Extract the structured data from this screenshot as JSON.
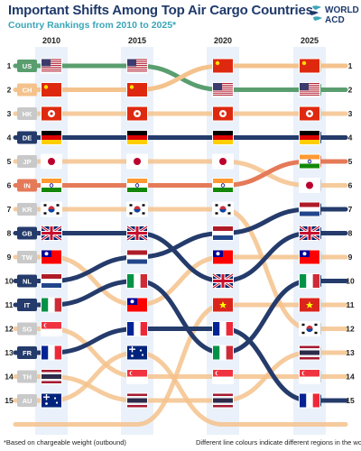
{
  "header": {
    "title": "Important Shifts Among Top Air Cargo Countries",
    "subtitle": "Country Rankings from 2010 to 2025*"
  },
  "logo": {
    "line1": "WORLD",
    "line2": "ACD"
  },
  "footer": {
    "footnote": "*Based on chargeable weight (outbound)",
    "note": "Different line colours indicate different regions in the world"
  },
  "colors": {
    "americas": "#5a9e6f",
    "asia": "#f4c28c",
    "europe": "#243b6b",
    "india": "#e57a58",
    "column_band": "#eaf1fa",
    "gray_badge": "#c9c9c9"
  },
  "chart_data": {
    "type": "bump",
    "years": [
      "2010",
      "2015",
      "2020",
      "2025"
    ],
    "ranks": [
      1,
      2,
      3,
      4,
      5,
      6,
      7,
      8,
      9,
      10,
      11,
      12,
      13,
      14,
      15
    ],
    "left_codes": [
      "US",
      "CH",
      "HK",
      "DE",
      "JP",
      "IN",
      "KR",
      "GB",
      "TW",
      "NL",
      "IT",
      "SG",
      "FR",
      "TH",
      "AU"
    ],
    "right_codes": [
      "CH",
      "US",
      "HK",
      "DE",
      "IN",
      "JP",
      "NL",
      "GB",
      "TW",
      "IT",
      "VN",
      "KR",
      "TH",
      "SG",
      "FR"
    ],
    "series": [
      {
        "code": "US",
        "flag": "us",
        "color": "americas",
        "highlight": true,
        "ranks": [
          1,
          1,
          2,
          2
        ]
      },
      {
        "code": "CH",
        "flag": "cn",
        "color": "asia",
        "highlight": true,
        "ranks": [
          2,
          2,
          1,
          1
        ]
      },
      {
        "code": "HK",
        "flag": "hk",
        "color": "asia",
        "highlight": false,
        "ranks": [
          3,
          3,
          3,
          3
        ]
      },
      {
        "code": "DE",
        "flag": "de",
        "color": "europe",
        "highlight": true,
        "ranks": [
          4,
          4,
          4,
          4
        ]
      },
      {
        "code": "JP",
        "flag": "jp",
        "color": "asia",
        "highlight": false,
        "ranks": [
          5,
          5,
          5,
          6
        ]
      },
      {
        "code": "IN",
        "flag": "in",
        "color": "india",
        "highlight": true,
        "ranks": [
          6,
          6,
          6,
          5
        ]
      },
      {
        "code": "KR",
        "flag": "kr",
        "color": "asia",
        "highlight": false,
        "ranks": [
          7,
          7,
          7,
          12
        ]
      },
      {
        "code": "GB",
        "flag": "gb",
        "color": "europe",
        "highlight": true,
        "ranks": [
          8,
          8,
          10,
          8
        ]
      },
      {
        "code": "TW",
        "flag": "tw",
        "color": "asia",
        "highlight": false,
        "ranks": [
          9,
          11,
          9,
          9
        ]
      },
      {
        "code": "NL",
        "flag": "nl",
        "color": "europe",
        "highlight": true,
        "ranks": [
          10,
          9,
          8,
          7
        ]
      },
      {
        "code": "IT",
        "flag": "it",
        "color": "europe",
        "highlight": true,
        "ranks": [
          11,
          10,
          13,
          10
        ]
      },
      {
        "code": "SG",
        "flag": "sg",
        "color": "asia",
        "highlight": false,
        "ranks": [
          12,
          14,
          14,
          14
        ]
      },
      {
        "code": "FR",
        "flag": "fr",
        "color": "europe",
        "highlight": true,
        "ranks": [
          13,
          12,
          12,
          15
        ]
      },
      {
        "code": "TH",
        "flag": "th",
        "color": "asia",
        "highlight": false,
        "ranks": [
          14,
          15,
          15,
          13
        ]
      },
      {
        "code": "AU",
        "flag": "au",
        "color": "asia",
        "highlight": false,
        "ranks": [
          15,
          13,
          16,
          16
        ]
      },
      {
        "code": "VN",
        "flag": "vn",
        "color": "asia",
        "highlight": false,
        "ranks": [
          16,
          16,
          11,
          11
        ]
      }
    ]
  }
}
